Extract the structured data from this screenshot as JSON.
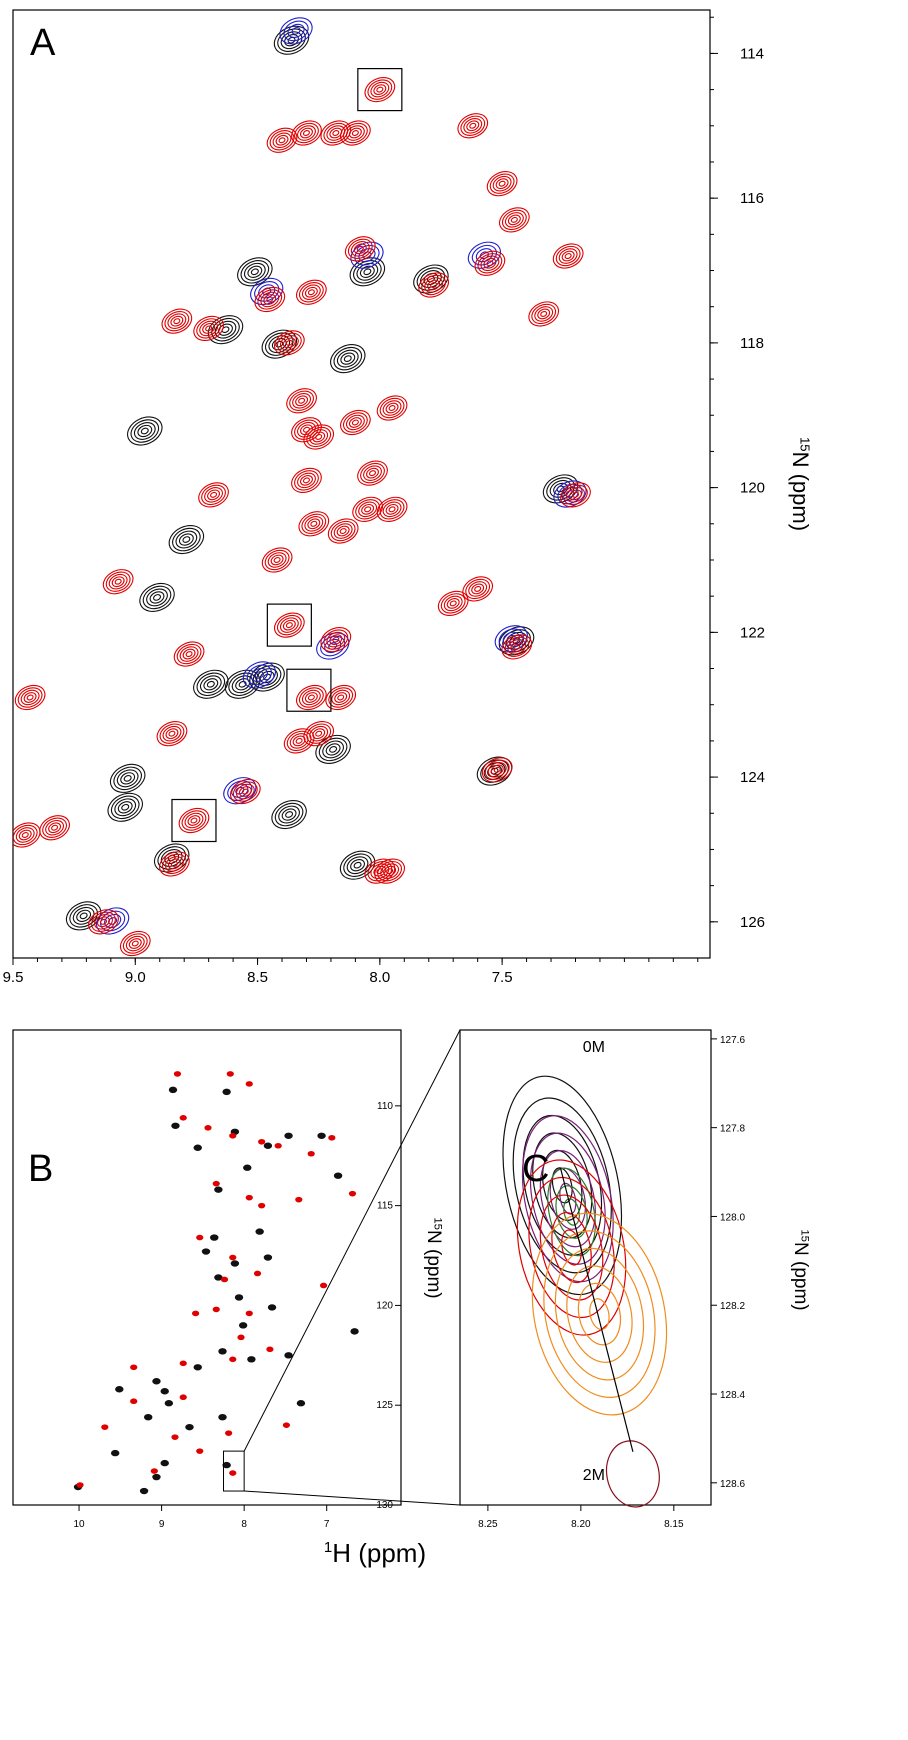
{
  "colors": {
    "black": "#111111",
    "red": "#e00000",
    "blue": "#1f1fd0",
    "purple": "#7a1f7a",
    "orange": "#f08c1e",
    "darkred": "#8a1020",
    "green": "#2a7a2a"
  },
  "chart_data": [
    {
      "panel": "A",
      "type": "scatter",
      "title": "",
      "xlabel": "",
      "ylabel": "15N (ppm)",
      "ylabel_sup": "15",
      "ylabel_rest": "N (ppm)",
      "xlim": [
        9.5,
        6.65
      ],
      "ylim": [
        113.4,
        126.5
      ],
      "xticks": [
        "9.5",
        "9.0",
        "8.5",
        "8.0",
        "7.5"
      ],
      "xtick_values": [
        9.5,
        9.0,
        8.5,
        8.0,
        7.5
      ],
      "yticks": [
        "114",
        "116",
        "118",
        "120",
        "122",
        "124",
        "126"
      ],
      "ytick_values": [
        114,
        116,
        118,
        120,
        122,
        124,
        126
      ],
      "series": [
        {
          "color": "black",
          "points": [
            [
              8.95,
              119.2
            ],
            [
              8.9,
              121.5
            ],
            [
              8.78,
              120.7
            ],
            [
              8.68,
              122.7
            ],
            [
              8.55,
              122.7
            ],
            [
              9.02,
              124.0
            ],
            [
              9.03,
              124.4
            ],
            [
              8.62,
              117.8
            ],
            [
              8.5,
              117.0
            ],
            [
              8.4,
              118.0
            ],
            [
              8.12,
              118.2
            ],
            [
              8.04,
              117.0
            ],
            [
              7.78,
              117.1
            ],
            [
              8.35,
              113.8
            ],
            [
              7.25,
              120.0
            ],
            [
              8.18,
              123.6
            ],
            [
              8.08,
              125.2
            ],
            [
              8.36,
              124.5
            ],
            [
              9.2,
              125.9
            ],
            [
              8.45,
              122.6
            ],
            [
              7.52,
              123.9
            ],
            [
              7.43,
              122.1
            ],
            [
              8.84,
              125.1
            ]
          ]
        },
        {
          "color": "red",
          "points": [
            [
              8.0,
              114.5
            ],
            [
              8.3,
              115.1
            ],
            [
              8.18,
              115.1
            ],
            [
              8.1,
              115.1
            ],
            [
              7.62,
              115.0
            ],
            [
              7.5,
              115.8
            ],
            [
              7.45,
              116.3
            ],
            [
              8.08,
              116.7
            ],
            [
              7.55,
              116.9
            ],
            [
              7.23,
              116.8
            ],
            [
              8.28,
              117.3
            ],
            [
              8.45,
              117.4
            ],
            [
              7.78,
              117.2
            ],
            [
              8.83,
              117.7
            ],
            [
              8.7,
              117.8
            ],
            [
              8.37,
              118.0
            ],
            [
              7.33,
              117.6
            ],
            [
              8.32,
              118.8
            ],
            [
              8.25,
              119.3
            ],
            [
              8.1,
              119.1
            ],
            [
              7.95,
              118.9
            ],
            [
              8.3,
              119.9
            ],
            [
              8.03,
              119.8
            ],
            [
              8.68,
              120.1
            ],
            [
              7.2,
              120.1
            ],
            [
              8.27,
              120.5
            ],
            [
              8.15,
              120.6
            ],
            [
              8.05,
              120.3
            ],
            [
              7.95,
              120.3
            ],
            [
              8.42,
              121.0
            ],
            [
              7.7,
              121.6
            ],
            [
              7.6,
              121.4
            ],
            [
              9.07,
              121.3
            ],
            [
              8.37,
              121.9
            ],
            [
              8.78,
              122.3
            ],
            [
              8.18,
              122.1
            ],
            [
              7.44,
              122.2
            ],
            [
              8.28,
              122.9
            ],
            [
              8.16,
              122.9
            ],
            [
              8.33,
              123.5
            ],
            [
              8.25,
              123.4
            ],
            [
              8.55,
              124.2
            ],
            [
              7.52,
              123.9
            ],
            [
              8.76,
              124.6
            ],
            [
              8.84,
              125.2
            ],
            [
              8.0,
              125.3
            ],
            [
              7.96,
              125.3
            ],
            [
              9.43,
              122.9
            ],
            [
              9.33,
              124.7
            ],
            [
              9.45,
              124.8
            ],
            [
              9.13,
              126.0
            ],
            [
              9.0,
              126.3
            ],
            [
              8.85,
              123.4
            ],
            [
              8.3,
              119.2
            ],
            [
              8.4,
              115.2
            ]
          ]
        },
        {
          "color": "blue",
          "points": [
            [
              8.5,
              122.6
            ],
            [
              8.2,
              122.2
            ],
            [
              7.47,
              122.1
            ],
            [
              8.35,
              113.7
            ],
            [
              7.58,
              116.8
            ],
            [
              7.23,
              120.1
            ],
            [
              8.47,
              117.3
            ],
            [
              8.06,
              116.8
            ],
            [
              8.58,
              124.2
            ],
            [
              9.1,
              126.0
            ]
          ]
        }
      ],
      "boxed_peaks": [
        [
          8.0,
          114.5
        ],
        [
          8.37,
          121.9
        ],
        [
          8.29,
          122.8
        ],
        [
          8.76,
          124.6
        ]
      ]
    },
    {
      "panel": "B",
      "type": "scatter",
      "title": "",
      "xlabel": "1H (ppm)",
      "xlabel_sup": "1",
      "xlabel_rest": "H (ppm)",
      "ylabel": "15N (ppm)",
      "ylabel_sup": "15",
      "ylabel_rest": "N (ppm)",
      "xlim": [
        10.8,
        6.1
      ],
      "ylim": [
        106.2,
        130.0
      ],
      "xticks": [
        "10",
        "9",
        "8",
        "7"
      ],
      "xtick_values": [
        10,
        9,
        8,
        7
      ],
      "yticks": [
        "110",
        "115",
        "120",
        "125",
        "130"
      ],
      "ytick_values": [
        110,
        115,
        120,
        125,
        130
      ],
      "series": [
        {
          "color": "black",
          "points": [
            [
              8.2,
              109.3
            ],
            [
              8.85,
              109.2
            ],
            [
              8.82,
              111.0
            ],
            [
              8.55,
              112.1
            ],
            [
              8.1,
              111.3
            ],
            [
              7.7,
              112.0
            ],
            [
              7.45,
              111.5
            ],
            [
              7.05,
              111.5
            ],
            [
              6.85,
              113.5
            ],
            [
              8.3,
              114.2
            ],
            [
              7.8,
              116.3
            ],
            [
              8.45,
              117.3
            ],
            [
              8.1,
              117.9
            ],
            [
              8.3,
              118.6
            ],
            [
              8.05,
              119.6
            ],
            [
              7.65,
              120.1
            ],
            [
              8.0,
              121.0
            ],
            [
              8.25,
              122.3
            ],
            [
              7.9,
              122.7
            ],
            [
              8.55,
              123.1
            ],
            [
              9.05,
              123.8
            ],
            [
              8.95,
              124.3
            ],
            [
              9.5,
              124.2
            ],
            [
              8.9,
              124.9
            ],
            [
              9.15,
              125.6
            ],
            [
              8.25,
              125.6
            ],
            [
              7.3,
              124.9
            ],
            [
              9.55,
              127.4
            ],
            [
              8.95,
              127.9
            ],
            [
              9.05,
              128.6
            ],
            [
              9.2,
              129.3
            ],
            [
              8.2,
              128.0
            ],
            [
              10.0,
              129.1
            ],
            [
              8.65,
              126.1
            ],
            [
              7.7,
              117.6
            ],
            [
              8.35,
              116.6
            ],
            [
              7.95,
              113.1
            ],
            [
              6.65,
              121.3
            ],
            [
              7.45,
              122.5
            ]
          ]
        },
        {
          "color": "red",
          "points": [
            [
              8.18,
              108.4
            ],
            [
              7.95,
              108.9
            ],
            [
              8.82,
              108.4
            ],
            [
              8.75,
              110.6
            ],
            [
              8.45,
              111.1
            ],
            [
              8.15,
              111.5
            ],
            [
              7.8,
              111.8
            ],
            [
              7.6,
              112.0
            ],
            [
              7.2,
              112.4
            ],
            [
              6.95,
              111.6
            ],
            [
              8.35,
              113.9
            ],
            [
              7.95,
              114.6
            ],
            [
              7.8,
              115.0
            ],
            [
              8.55,
              116.6
            ],
            [
              8.15,
              117.6
            ],
            [
              8.25,
              118.7
            ],
            [
              7.85,
              118.4
            ],
            [
              8.35,
              120.2
            ],
            [
              7.95,
              120.4
            ],
            [
              8.05,
              121.6
            ],
            [
              8.15,
              122.7
            ],
            [
              7.7,
              122.2
            ],
            [
              8.75,
              122.9
            ],
            [
              9.35,
              123.1
            ],
            [
              8.75,
              124.6
            ],
            [
              9.35,
              124.8
            ],
            [
              8.2,
              126.4
            ],
            [
              7.5,
              126.0
            ],
            [
              9.7,
              126.1
            ],
            [
              8.85,
              126.6
            ],
            [
              8.55,
              127.3
            ],
            [
              9.1,
              128.3
            ],
            [
              8.15,
              128.4
            ],
            [
              10.0,
              129.0
            ],
            [
              7.05,
              119.0
            ],
            [
              6.7,
              114.4
            ],
            [
              7.35,
              114.7
            ],
            [
              8.6,
              120.4
            ]
          ]
        }
      ],
      "zoom_box": {
        "x": [
          8.25,
          8.0
        ],
        "y": [
          127.3,
          129.3
        ]
      }
    },
    {
      "panel": "C",
      "type": "contour",
      "title": "",
      "xlabel": "",
      "ylabel": "15N (ppm)",
      "ylabel_sup": "15",
      "ylabel_rest": "N (ppm)",
      "xlim": [
        8.265,
        8.13
      ],
      "ylim": [
        127.58,
        128.65
      ],
      "xticks": [
        "8.25",
        "8.20",
        "8.15"
      ],
      "xtick_values": [
        8.25,
        8.2,
        8.15
      ],
      "yticks": [
        "127.6",
        "127.8",
        "128.0",
        "128.2",
        "128.4",
        "128.6"
      ],
      "ytick_values": [
        127.6,
        127.8,
        128.0,
        128.2,
        128.4,
        128.6
      ],
      "series": [
        {
          "color": "black",
          "center": [
            8.21,
            127.93
          ],
          "rx": [
            0.005,
            0.01,
            0.015,
            0.02,
            0.025,
            0.03
          ],
          "ry": [
            0.04,
            0.08,
            0.12,
            0.16,
            0.2,
            0.25
          ]
        },
        {
          "color": "purple",
          "center": [
            8.207,
            127.96
          ],
          "rx": [
            0.004,
            0.009,
            0.014,
            0.019,
            0.023
          ],
          "ry": [
            0.035,
            0.07,
            0.11,
            0.15,
            0.19
          ]
        },
        {
          "color": "green",
          "center": [
            8.205,
            127.99
          ],
          "rx": [
            0.004,
            0.008,
            0.012
          ],
          "ry": [
            0.03,
            0.06,
            0.1
          ]
        },
        {
          "color": "red",
          "center": [
            8.205,
            128.07
          ],
          "rx": [
            0.005,
            0.01,
            0.016,
            0.022,
            0.028
          ],
          "ry": [
            0.04,
            0.08,
            0.12,
            0.16,
            0.2
          ]
        },
        {
          "color": "orange",
          "center": [
            8.19,
            128.22
          ],
          "rx": [
            0.005,
            0.011,
            0.017,
            0.023,
            0.029,
            0.035
          ],
          "ry": [
            0.035,
            0.07,
            0.11,
            0.15,
            0.19,
            0.23
          ]
        },
        {
          "color": "darkred",
          "center": [
            8.172,
            128.58
          ],
          "rx": [
            0.014
          ],
          "ry": [
            0.075
          ]
        }
      ],
      "trajectory": [
        [
          8.211,
          127.89
        ],
        [
          8.172,
          128.53
        ]
      ],
      "annotations": [
        {
          "text": "0M",
          "x": 8.193,
          "y": 127.63
        },
        {
          "text": "2M",
          "x": 8.193,
          "y": 128.58
        }
      ]
    }
  ],
  "panel_labels": [
    "A",
    "B",
    "C"
  ]
}
